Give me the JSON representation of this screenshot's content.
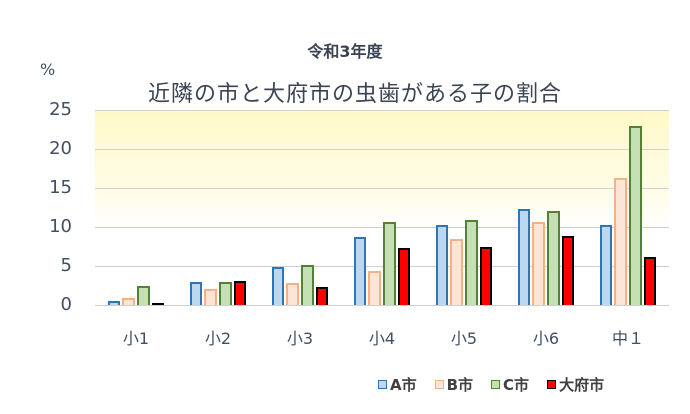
{
  "chart_data": {
    "type": "bar",
    "subtitle": "令和3年度",
    "title": "近隣の市と大府市の虫歯がある子の割合",
    "ylabel": "%",
    "xlabel": "",
    "ylim": [
      0,
      25
    ],
    "yticks": [
      "0",
      "5",
      "10",
      "15",
      "20",
      "25"
    ],
    "grid": true,
    "legend_position": "bottom-right",
    "categories": [
      "小1",
      "小2",
      "小3",
      "小4",
      "小5",
      "小6",
      "中１"
    ],
    "series": [
      {
        "name": "A市",
        "fill": "#bdd7ee",
        "border": "#2e75b6",
        "values": [
          0.5,
          2.9,
          4.9,
          8.7,
          10.3,
          12.3,
          10.3
        ]
      },
      {
        "name": "B市",
        "fill": "#fce4d6",
        "border": "#f4b183",
        "values": [
          0.9,
          2.1,
          2.8,
          4.3,
          8.4,
          10.6,
          16.3
        ]
      },
      {
        "name": "C市",
        "fill": "#c5e0b4",
        "border": "#548235",
        "values": [
          2.5,
          3.0,
          5.1,
          10.6,
          10.9,
          12.0,
          23.0
        ]
      },
      {
        "name": "大府市",
        "fill": "#ff0000",
        "border": "#000000",
        "values": [
          0.2,
          3.1,
          2.3,
          7.3,
          7.4,
          8.8,
          6.2
        ]
      }
    ]
  }
}
